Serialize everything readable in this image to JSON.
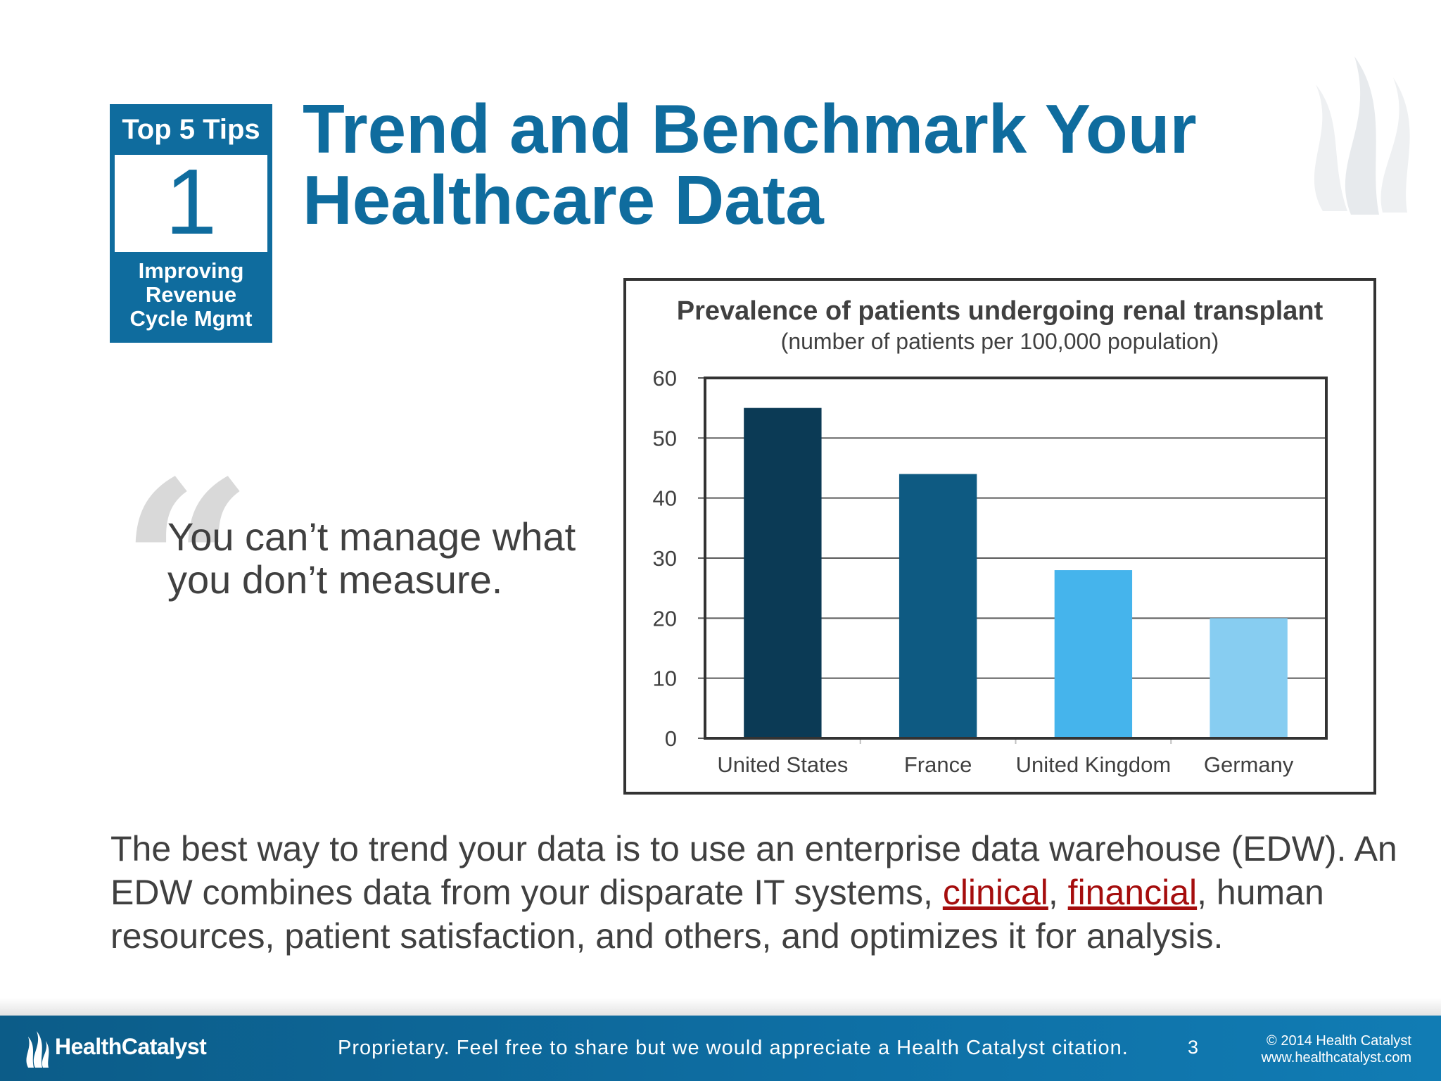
{
  "badge": {
    "top": "Top 5 Tips",
    "number": "1",
    "bottom": "Improving\nRevenue\nCycle Mgmt"
  },
  "title": "Trend and Benchmark Your Healthcare Data",
  "quote": "You can’t manage what you don’t measure.",
  "quote_mark": "“",
  "chart_data": {
    "type": "bar",
    "title": "Prevalence of patients undergoing renal transplant",
    "subtitle": "(number of patients per 100,000 population)",
    "categories": [
      "United States",
      "France",
      "United Kingdom",
      "Germany"
    ],
    "values": [
      55,
      44,
      28,
      20
    ],
    "colors": [
      "#0b3a55",
      "#0e5a82",
      "#45b4ec",
      "#87cdf1"
    ],
    "ylim": [
      0,
      60
    ],
    "yticks": [
      0,
      10,
      20,
      30,
      40,
      50,
      60
    ],
    "grid": true,
    "xlabel": "",
    "ylabel": ""
  },
  "body": {
    "part1": "The best way to trend your data is to use an enterprise data warehouse (EDW). An EDW combines data from your disparate IT systems, ",
    "link_clinical": "clinical",
    "sep1": ", ",
    "link_financial": "financial",
    "part2": ", human resources, patient satisfaction, and others, and optimizes it for analysis."
  },
  "footer": {
    "brand": "HealthCatalyst",
    "note": "Proprietary. Feel free to share but we would appreciate a Health Catalyst citation.",
    "page": "3",
    "copyright": "© 2014 Health Catalyst",
    "website": "www.healthcatalyst.com"
  },
  "colors": {
    "brand_blue": "#0f6c9e",
    "link_red": "#a50d0d"
  }
}
